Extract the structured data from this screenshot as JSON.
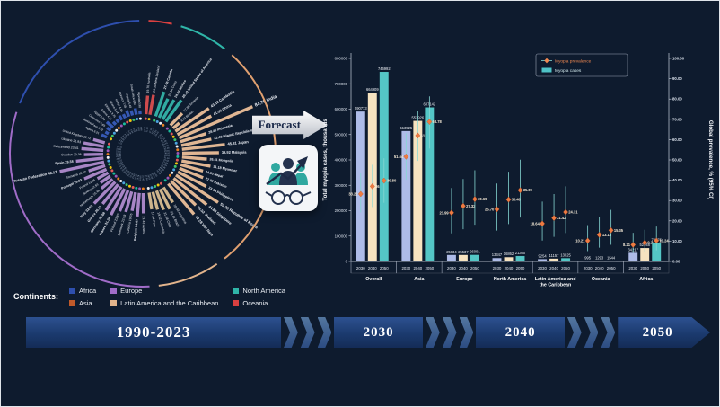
{
  "page": {
    "background": "#0e1b2e"
  },
  "forecast": {
    "label": "Forecast"
  },
  "timeline": {
    "segments": [
      "1990-2023",
      "2030",
      "2040",
      "2050"
    ]
  },
  "continents_legend": {
    "title": "Continents:",
    "items": [
      {
        "label": "Africa",
        "color": "#2e4fae"
      },
      {
        "label": "Asia",
        "color": "#c05a2a"
      },
      {
        "label": "Europe",
        "color": "#a06cc8"
      },
      {
        "label": "Latin America and the Caribbean",
        "color": "#e2b48c"
      },
      {
        "label": "North America",
        "color": "#2fb5a8"
      },
      {
        "label": "Oceania",
        "color": "#d94040"
      }
    ]
  },
  "chart_data": [
    {
      "type": "radial-bar",
      "title": "",
      "period": "1990-2023",
      "unit": "%",
      "continent_colors": {
        "Africa": "#3a5fc0",
        "Asia": "#f2c49c",
        "Europe": "#b48fd2",
        "Latin America and the Caribbean": "#dfc194",
        "North America": "#35b8ac",
        "Oceania": "#e05050"
      },
      "arc_colors": {
        "Africa": "#2e4fae",
        "Asia": "#e0a070",
        "Europe": "#a06cc8",
        "Latin America and the Caribbean": "#e2b48c",
        "North America": "#2fb5a8",
        "Oceania": "#d94040"
      },
      "countries": [
        {
          "name": "Australia",
          "continent": "Oceania",
          "value": 19.7
        },
        {
          "name": "New Zealand",
          "continent": "Oceania",
          "value": 21.3
        },
        {
          "name": "Canada",
          "continent": "North America",
          "value": 27.46
        },
        {
          "name": "Cuba",
          "continent": "North America",
          "value": 22.14
        },
        {
          "name": "Mexico",
          "continent": "North America",
          "value": 24.03
        },
        {
          "name": "United States of America",
          "continent": "North America",
          "value": 28.1
        },
        {
          "name": "Armenia",
          "continent": "Asia",
          "value": 17.88
        },
        {
          "name": "Bhutan",
          "continent": "Asia",
          "value": 8.63
        },
        {
          "name": "Cambodia",
          "continent": "Asia",
          "value": 43.1
        },
        {
          "name": "China",
          "continent": "Asia",
          "value": 41.0
        },
        {
          "name": "India",
          "continent": "Asia",
          "value": 84.78
        },
        {
          "name": "Indonesia",
          "continent": "Asia",
          "value": 28.46
        },
        {
          "name": "Islamic Republic of Iran",
          "continent": "Asia",
          "value": 32.4
        },
        {
          "name": "Japan",
          "continent": "Asia",
          "value": 45.81
        },
        {
          "name": "Malaysia",
          "continent": "Asia",
          "value": 38.92
        },
        {
          "name": "Mongolia",
          "continent": "Asia",
          "value": 26.41
        },
        {
          "name": "Myanmar",
          "continent": "Asia",
          "value": 31.18
        },
        {
          "name": "Nepal",
          "continent": "Asia",
          "value": 24.63
        },
        {
          "name": "Pakistan",
          "continent": "Asia",
          "value": 27.02
        },
        {
          "name": "Philippines",
          "continent": "Asia",
          "value": 33.84
        },
        {
          "name": "Republic of Korea",
          "continent": "Asia",
          "value": 53.36
        },
        {
          "name": "Singapore",
          "continent": "Asia",
          "value": 44.88
        },
        {
          "name": "Thailand",
          "continent": "Asia",
          "value": 36.52
        },
        {
          "name": "Viet Nam",
          "continent": "Asia",
          "value": 42.28
        },
        {
          "name": "Argentina",
          "continent": "Latin America and the Caribbean",
          "value": 18.93
        },
        {
          "name": "Brazil",
          "continent": "Latin America and the Caribbean",
          "value": 23.41
        },
        {
          "name": "Chile",
          "continent": "Latin America and the Caribbean",
          "value": 21.68
        },
        {
          "name": "Colombia",
          "continent": "Latin America and the Caribbean",
          "value": 19.52
        },
        {
          "name": "Peru",
          "continent": "Latin America and the Caribbean",
          "value": 17.84
        },
        {
          "name": "Austria",
          "continent": "Europe",
          "value": 21.43
        },
        {
          "name": "Belgium",
          "continent": "Europe",
          "value": 24.87
        },
        {
          "name": "Czechia",
          "continent": "Europe",
          "value": 19.76
        },
        {
          "name": "Denmark",
          "continent": "Europe",
          "value": 22.58
        },
        {
          "name": "Finland",
          "continent": "Europe",
          "value": 23.82
        },
        {
          "name": "France",
          "continent": "Europe",
          "value": 31.24
        },
        {
          "name": "Germany",
          "continent": "Europe",
          "value": 29.68
        },
        {
          "name": "Greece",
          "continent": "Europe",
          "value": 26.31
        },
        {
          "name": "Italy",
          "continent": "Europe",
          "value": 32.01
        },
        {
          "name": "Netherlands",
          "continent": "Europe",
          "value": 15.48
        },
        {
          "name": "Norway",
          "continent": "Europe",
          "value": 12.59
        },
        {
          "name": "Poland",
          "continent": "Europe",
          "value": 12.95
        },
        {
          "name": "Portugal",
          "continent": "Europe",
          "value": 25.63
        },
        {
          "name": "Romania",
          "continent": "Europe",
          "value": 18.42
        },
        {
          "name": "Russian Federation",
          "continent": "Europe",
          "value": 48.17
        },
        {
          "name": "Spain",
          "continent": "Europe",
          "value": 29.38
        },
        {
          "name": "Sweden",
          "continent": "Europe",
          "value": 20.38
        },
        {
          "name": "Switzerland",
          "continent": "Europe",
          "value": 23.41
        },
        {
          "name": "Ukraine",
          "continent": "Europe",
          "value": 21.93
        },
        {
          "name": "United Kingdom",
          "continent": "Europe",
          "value": 12.72
        },
        {
          "name": "Algeria",
          "continent": "Africa",
          "value": 6.21
        },
        {
          "name": "Burkina Faso",
          "continent": "Africa",
          "value": 3.92
        },
        {
          "name": "Cameroon",
          "continent": "Africa",
          "value": 4.85
        },
        {
          "name": "Egypt",
          "continent": "Africa",
          "value": 8.93
        },
        {
          "name": "Eritrea",
          "continent": "Africa",
          "value": 4.12
        },
        {
          "name": "Ethiopia",
          "continent": "Africa",
          "value": 3.75
        },
        {
          "name": "Ghana",
          "continent": "Africa",
          "value": 5.24
        },
        {
          "name": "Kenya",
          "continent": "Africa",
          "value": 4.66
        },
        {
          "name": "Morocco",
          "continent": "Africa",
          "value": 7.05
        },
        {
          "name": "Nigeria",
          "continent": "Africa",
          "value": 5.48
        },
        {
          "name": "South Africa",
          "continent": "Africa",
          "value": 6.87
        },
        {
          "name": "Uganda",
          "continent": "Africa",
          "value": 3.98
        }
      ]
    },
    {
      "type": "bar+scatter",
      "title": "",
      "ylabel_left": "Total myopia cases, thousands",
      "ylabel_right": "Global prevalence, % (95% CI)",
      "ylim_left": [
        0,
        800000
      ],
      "ylim_right": [
        0,
        100
      ],
      "yticks_left": [
        "0",
        "100000",
        "200000",
        "300000",
        "400000",
        "500000",
        "600000",
        "700000",
        "800000"
      ],
      "yticks_right": [
        "0.00",
        "10.00",
        "20.00",
        "30.00",
        "40.00",
        "50.00",
        "60.00",
        "70.00",
        "80.00",
        "90.00",
        "100.00"
      ],
      "years": [
        "2030",
        "2040",
        "2050"
      ],
      "year_colors": [
        "#aebce8",
        "#f6e3c0",
        "#54c6c6"
      ],
      "legend": [
        {
          "label": "Myopia prevalence",
          "color": "#ef8851",
          "marker": "diamond"
        },
        {
          "label": "Myopia cases",
          "color": "#4fc3c7",
          "marker": "bar"
        }
      ],
      "groups": [
        {
          "label": "Overall",
          "cases": [
            590773,
            664909,
            746992
          ],
          "prevalence": [
            33.22,
            36.99,
            39.8
          ],
          "ci_low": [
            24.1,
            26.8,
            28.9
          ],
          "ci_high": [
            43.5,
            47.6,
            50.8
          ]
        },
        {
          "label": "Asia",
          "cases": [
            513925,
            553926,
            607142
          ],
          "prevalence": [
            51.64,
            61.99,
            68.78
          ],
          "ci_low": [
            40.2,
            49.5,
            55.6
          ],
          "ci_high": [
            63.1,
            74.0,
            81.3
          ]
        },
        {
          "label": "Europe",
          "cases": [
            25634,
            25537,
            26001
          ],
          "prevalence": [
            23.99,
            27.32,
            30.69
          ],
          "ci_low": [
            13.8,
            15.9,
            18.1
          ],
          "ci_high": [
            36.2,
            40.6,
            44.9
          ]
        },
        {
          "label": "North America",
          "cases": [
            13347,
            16862,
            21360
          ],
          "prevalence": [
            25.7,
            30.46,
            35.09
          ],
          "ci_low": [
            15.2,
            18.4,
            21.6
          ],
          "ci_high": [
            38.4,
            44.2,
            50.1
          ]
        },
        {
          "label": "Latin America and the Caribbean",
          "cases": [
            9254,
            11157,
            13025
          ],
          "prevalence": [
            18.64,
            21.42,
            24.31
          ],
          "ci_low": [
            10.3,
            12.1,
            14.0
          ],
          "ci_high": [
            29.5,
            33.2,
            37.0
          ]
        },
        {
          "label": "Oceania",
          "cases": [
            995,
            1293,
            1544
          ],
          "prevalence": [
            10.21,
            13.13,
            15.35
          ],
          "ci_low": [
            5.1,
            6.8,
            8.2
          ],
          "ci_high": [
            17.9,
            22.1,
            25.4
          ]
        },
        {
          "label": "Africa",
          "cases": [
            34217,
            52948,
            72376
          ],
          "prevalence": [
            8.21,
            9.24,
            10.24
          ],
          "ci_low": [
            4.2,
            4.9,
            5.5
          ],
          "ci_high": [
            14.1,
            15.6,
            17.2
          ]
        }
      ]
    }
  ]
}
